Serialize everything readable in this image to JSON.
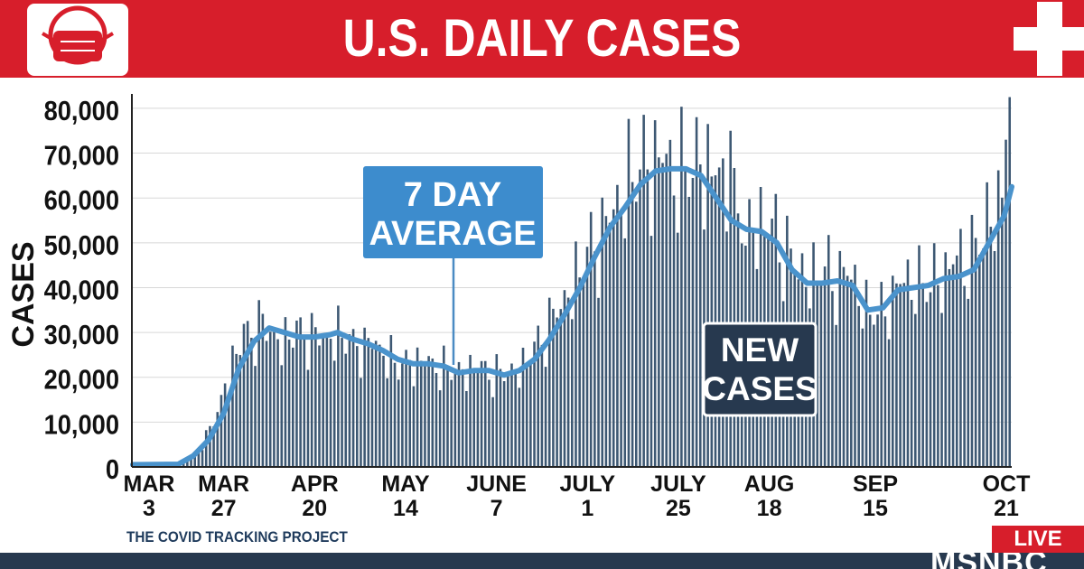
{
  "header": {
    "title": "U.S. DAILY CASES"
  },
  "footer": {
    "source": "THE COVID TRACKING PROJECT",
    "live_label": "LIVE",
    "network_label": "MSNBC"
  },
  "colors": {
    "banner": "#d71e2b",
    "bars": "#3d5873",
    "avg_line": "#4a93cc",
    "callout_avg": "#3d8ccd",
    "callout_new": "#27394f"
  },
  "chart_data": {
    "type": "bar",
    "title": "U.S. DAILY CASES",
    "ylabel": "CASES",
    "xlabel": "",
    "ylim": [
      0,
      82000
    ],
    "yticks": [
      "0",
      "10,000",
      "20,000",
      "30,000",
      "40,000",
      "50,000",
      "60,000",
      "70,000",
      "80,000"
    ],
    "xticks": [
      {
        "day": 0,
        "month": "MAR",
        "date": "3"
      },
      {
        "day": 24,
        "month": "MAR",
        "date": "27"
      },
      {
        "day": 48,
        "month": "APR",
        "date": "20"
      },
      {
        "day": 72,
        "month": "MAY",
        "date": "14"
      },
      {
        "day": 96,
        "month": "JUNE",
        "date": "7"
      },
      {
        "day": 120,
        "month": "JULY",
        "date": "1"
      },
      {
        "day": 144,
        "month": "JULY",
        "date": "25"
      },
      {
        "day": 168,
        "month": "AUG",
        "date": "18"
      },
      {
        "day": 196,
        "month": "SEP",
        "date": "15"
      },
      {
        "day": 232,
        "month": "OCT",
        "date": "21"
      }
    ],
    "series": [
      {
        "name": "NEW CASES",
        "type": "bar",
        "keypoints": [
          [
            0,
            100
          ],
          [
            10,
            300
          ],
          [
            14,
            1500
          ],
          [
            18,
            5000
          ],
          [
            22,
            12000
          ],
          [
            26,
            24000
          ],
          [
            30,
            30000
          ],
          [
            34,
            31500
          ],
          [
            38,
            28000
          ],
          [
            42,
            29500
          ],
          [
            46,
            30000
          ],
          [
            50,
            28000
          ],
          [
            54,
            30000
          ],
          [
            58,
            27000
          ],
          [
            62,
            27500
          ],
          [
            66,
            26000
          ],
          [
            70,
            22000
          ],
          [
            74,
            24000
          ],
          [
            78,
            23000
          ],
          [
            82,
            22000
          ],
          [
            86,
            21000
          ],
          [
            90,
            22500
          ],
          [
            94,
            21000
          ],
          [
            98,
            20500
          ],
          [
            102,
            22000
          ],
          [
            106,
            26000
          ],
          [
            110,
            32000
          ],
          [
            114,
            37000
          ],
          [
            118,
            44000
          ],
          [
            122,
            50000
          ],
          [
            126,
            55000
          ],
          [
            130,
            63000
          ],
          [
            134,
            66000
          ],
          [
            138,
            69000
          ],
          [
            142,
            67000
          ],
          [
            146,
            65000
          ],
          [
            150,
            68000
          ],
          [
            154,
            66000
          ],
          [
            158,
            56000
          ],
          [
            162,
            52000
          ],
          [
            166,
            55000
          ],
          [
            170,
            52000
          ],
          [
            174,
            46000
          ],
          [
            178,
            42000
          ],
          [
            182,
            44000
          ],
          [
            186,
            42000
          ],
          [
            190,
            43000
          ],
          [
            194,
            35000
          ],
          [
            198,
            34000
          ],
          [
            202,
            40000
          ],
          [
            206,
            42000
          ],
          [
            210,
            40000
          ],
          [
            214,
            43000
          ],
          [
            218,
            46000
          ],
          [
            222,
            47000
          ],
          [
            226,
            54000
          ],
          [
            230,
            62000
          ],
          [
            232,
            66000
          ]
        ]
      },
      {
        "name": "7 DAY AVERAGE",
        "type": "line",
        "points": [
          [
            0,
            500
          ],
          [
            12,
            600
          ],
          [
            16,
            2500
          ],
          [
            20,
            6000
          ],
          [
            24,
            12000
          ],
          [
            28,
            22000
          ],
          [
            32,
            28000
          ],
          [
            36,
            31000
          ],
          [
            40,
            30000
          ],
          [
            44,
            29000
          ],
          [
            48,
            29000
          ],
          [
            52,
            29500
          ],
          [
            54,
            30000
          ],
          [
            58,
            28500
          ],
          [
            62,
            27500
          ],
          [
            66,
            26000
          ],
          [
            70,
            24000
          ],
          [
            74,
            23000
          ],
          [
            78,
            23000
          ],
          [
            82,
            22500
          ],
          [
            86,
            21000
          ],
          [
            90,
            21500
          ],
          [
            94,
            21500
          ],
          [
            98,
            20500
          ],
          [
            102,
            21500
          ],
          [
            106,
            24000
          ],
          [
            110,
            28500
          ],
          [
            114,
            34000
          ],
          [
            118,
            40000
          ],
          [
            122,
            47000
          ],
          [
            126,
            53500
          ],
          [
            130,
            58000
          ],
          [
            134,
            63000
          ],
          [
            138,
            66000
          ],
          [
            142,
            66500
          ],
          [
            146,
            66500
          ],
          [
            150,
            65000
          ],
          [
            154,
            60000
          ],
          [
            158,
            55000
          ],
          [
            162,
            53000
          ],
          [
            166,
            52500
          ],
          [
            170,
            50000
          ],
          [
            174,
            44000
          ],
          [
            178,
            41000
          ],
          [
            182,
            41000
          ],
          [
            186,
            41500
          ],
          [
            190,
            40500
          ],
          [
            194,
            35000
          ],
          [
            198,
            35500
          ],
          [
            202,
            39500
          ],
          [
            206,
            40000
          ],
          [
            210,
            40500
          ],
          [
            214,
            42000
          ],
          [
            218,
            42500
          ],
          [
            222,
            44000
          ],
          [
            226,
            50000
          ],
          [
            230,
            56000
          ],
          [
            232,
            62500
          ]
        ]
      }
    ],
    "annotations": [
      {
        "text": "7 DAY AVERAGE",
        "lines": [
          "7 DAY",
          "AVERAGE"
        ]
      },
      {
        "text": "NEW CASES",
        "lines": [
          "NEW",
          "CASES"
        ]
      }
    ]
  }
}
